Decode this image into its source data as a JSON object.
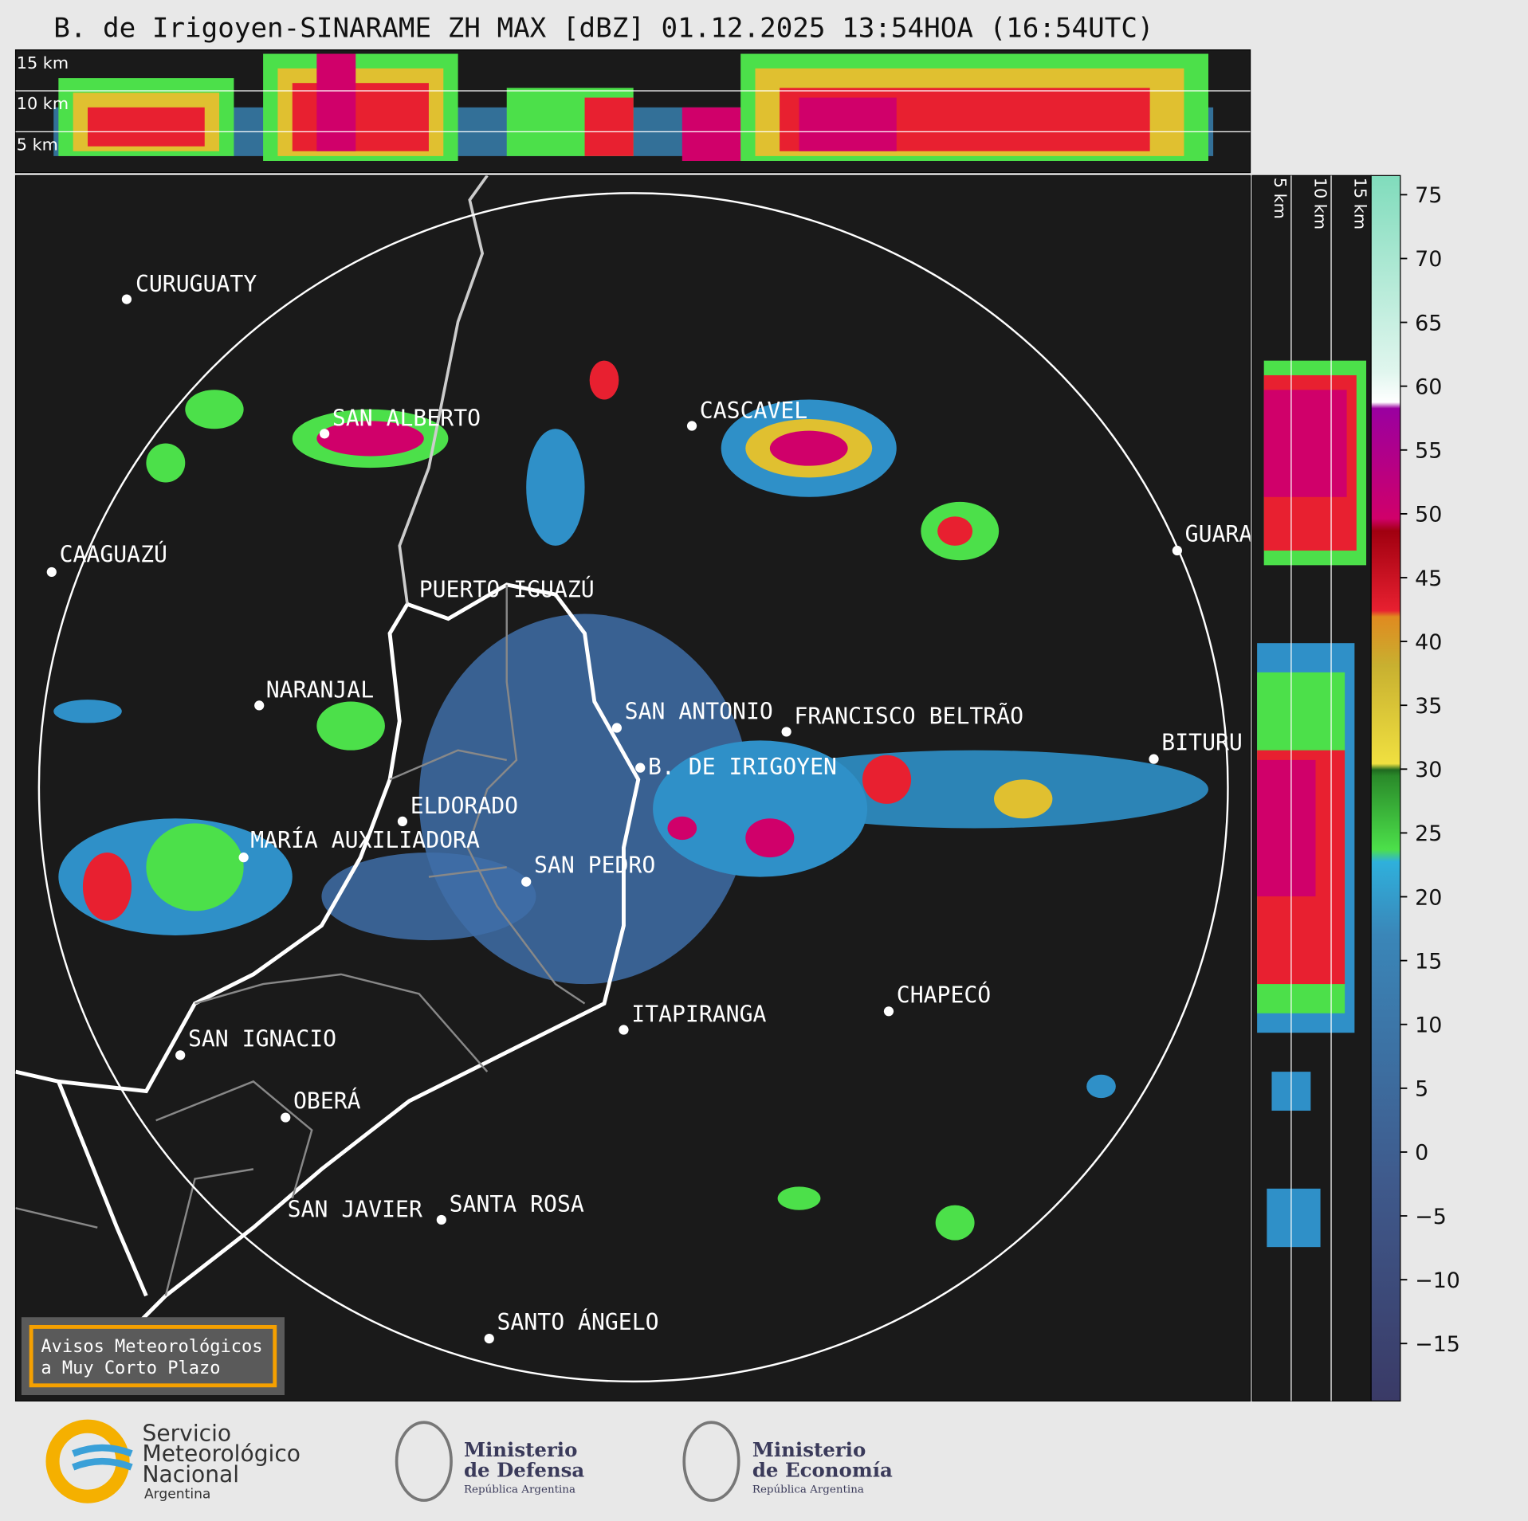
{
  "header": {
    "title": "B. de Irigoyen-SINARAME ZH MAX [dBZ] 01.12.2025 13:54HOA (16:54UTC)"
  },
  "height_labels": [
    "15 km",
    "10 km",
    "5 km"
  ],
  "cities": [
    "CURUGUATY",
    "SAN ALBERTO",
    "CAAGUAZÚ",
    "PUERTO IGUAZÚ",
    "NARANJAL",
    "CASCAVEL",
    "GUARA",
    "SAN ANTONIO",
    "FRANCISCO BELTRÃO",
    "B. DE IRIGOYEN",
    "BITURU",
    "ELDORADO",
    "MARÍA AUXILIADORA",
    "SAN PEDRO",
    "ITAPIRANGA",
    "CHAPECÓ",
    "SAN IGNACIO",
    "OBERÁ",
    "SAN JAVIER",
    "SANTA ROSA",
    "SANTO ÁNGELO"
  ],
  "colorbar": {
    "range": [
      -19.5,
      76.5
    ],
    "ticks": [
      75,
      70,
      65,
      60,
      55,
      50,
      45,
      40,
      35,
      30,
      25,
      20,
      15,
      10,
      5,
      0,
      {
        "value": -5,
        "label": "−5"
      },
      {
        "value": -10,
        "label": "−10"
      },
      {
        "value": -15,
        "label": "−15"
      }
    ]
  },
  "notice": [
    "Avisos Meteorológicos",
    "a Muy Corto Plazo"
  ],
  "logos": [
    {
      "lines": [
        "Servicio",
        "Meteorológico",
        "Nacional",
        "Argentina"
      ]
    },
    {
      "lines": [
        "Ministerio",
        "de Defensa",
        "República Argentina"
      ]
    },
    {
      "lines": [
        "Ministerio",
        "de Economía",
        "República Argentina"
      ]
    }
  ]
}
